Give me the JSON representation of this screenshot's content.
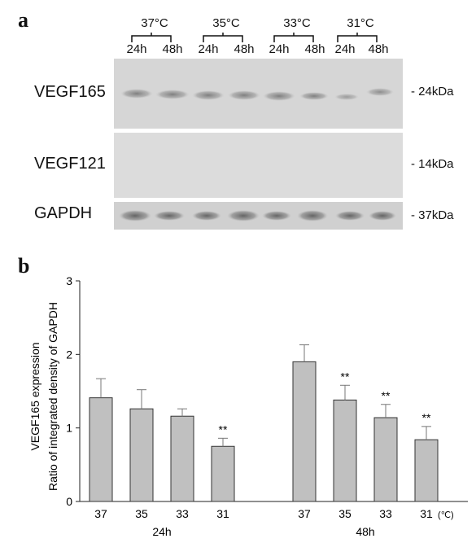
{
  "panel_a": {
    "letter": "a",
    "temperatures": [
      "37°C",
      "35°C",
      "33°C",
      "31°C"
    ],
    "timepoints": [
      "24h",
      "48h"
    ],
    "blots": [
      {
        "name": "VEGF165",
        "kda": "- 24kDa"
      },
      {
        "name": "VEGF121",
        "kda": "- 14kDa"
      },
      {
        "name": "GAPDH",
        "kda": "- 37kDa"
      }
    ]
  },
  "panel_b": {
    "letter": "b"
  },
  "chart_data": {
    "type": "bar",
    "ylabel_line1": "VEGF165 expression",
    "ylabel_line2": "Ratio of integrated density of GAPDH",
    "ylim": [
      0,
      3
    ],
    "yticks": [
      "0",
      "1",
      "2",
      "3"
    ],
    "unit_label": "(℃)",
    "groups": [
      {
        "name": "24h",
        "categories": [
          "37",
          "35",
          "33",
          "31"
        ],
        "values": [
          1.41,
          1.26,
          1.16,
          0.75
        ],
        "errors": [
          0.26,
          0.26,
          0.1,
          0.11
        ],
        "annotations": [
          "",
          "",
          "",
          "**"
        ]
      },
      {
        "name": "48h",
        "categories": [
          "37",
          "35",
          "33",
          "31"
        ],
        "values": [
          1.9,
          1.38,
          1.14,
          0.84
        ],
        "errors": [
          0.23,
          0.2,
          0.18,
          0.18
        ],
        "annotations": [
          "",
          "**",
          "**",
          "**"
        ]
      }
    ],
    "bar_color": "#c0c0c0"
  }
}
